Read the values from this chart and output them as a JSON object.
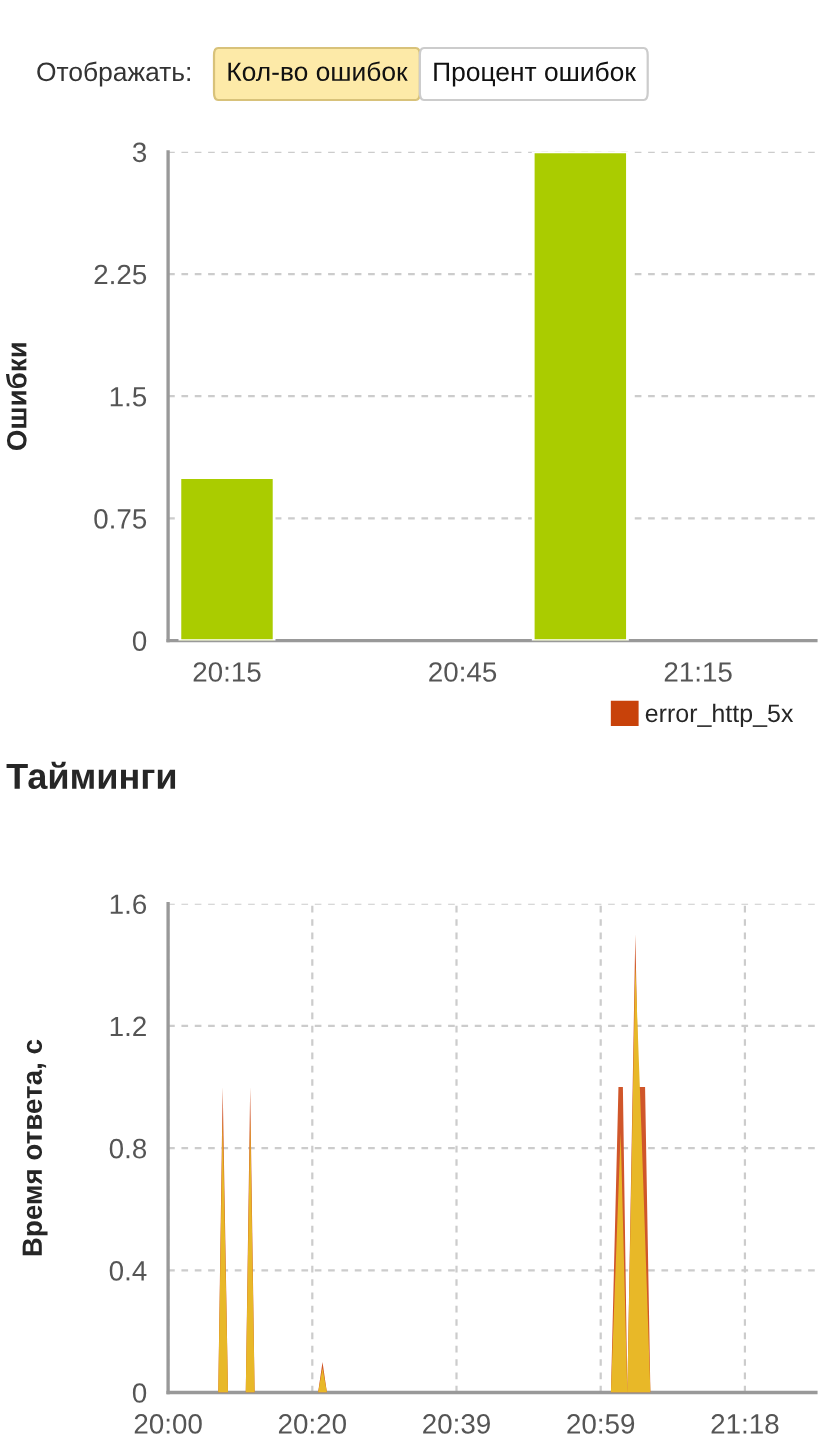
{
  "chart_data": [
    {
      "type": "bar",
      "ylabel": "Ошибки",
      "annotations": [
        "Отображать:",
        "Кол-во ошибок",
        "Процент ошибок"
      ],
      "x": [
        20.25,
        21.0
      ],
      "series": [
        {
          "color": "#aacc00",
          "values": [
            1,
            3
          ]
        },
        {
          "name": "error_http_5x",
          "color": "#c8420a",
          "values": [
            null,
            null
          ]
        }
      ],
      "xlim": [
        20.125,
        21.5
      ],
      "xticks": [
        {
          "value": 20.25,
          "label": "20:15"
        },
        {
          "value": 20.75,
          "label": "20:45"
        },
        {
          "value": 21.25,
          "label": "21:15"
        }
      ],
      "ylim": [
        0,
        3
      ],
      "yticks": [
        0,
        0.75,
        1.5,
        2.25,
        3
      ],
      "grid": "y",
      "legend": "bottom right"
    },
    {
      "type": "area",
      "title": "Тайминги",
      "ylabel": "Время ответа, с",
      "series": [
        {
          "color": "#d0562a",
          "x": [
            20.0,
            20.113,
            20.123,
            20.135,
            20.175,
            20.185,
            20.195,
            20.338,
            20.348,
            20.358,
            20.998,
            21.015,
            21.025,
            21.035,
            21.053,
            21.06,
            21.075,
            21.087,
            21.46
          ],
          "values": [
            0,
            0,
            1.0,
            0,
            0,
            1.0,
            0,
            0,
            0.1,
            0,
            0,
            1.0,
            1.0,
            0,
            1.5,
            1.0,
            1.0,
            0,
            0
          ]
        },
        {
          "color": "#e8b828",
          "x": [
            20.0,
            20.113,
            20.123,
            20.135,
            20.175,
            20.185,
            20.195,
            20.338,
            20.348,
            20.358,
            20.998,
            21.02,
            21.035,
            21.053,
            21.067,
            21.087,
            21.46
          ],
          "values": [
            0,
            0,
            0.9,
            0,
            0,
            0.9,
            0,
            0,
            0.08,
            0,
            0,
            0.85,
            0,
            1.4,
            0.85,
            0,
            0
          ]
        }
      ],
      "xlim": [
        20.0,
        21.46
      ],
      "xticks": [
        {
          "value": 20.0,
          "label": "20:00"
        },
        {
          "value": 20.325,
          "label": "20:20"
        },
        {
          "value": 20.65,
          "label": "20:39"
        },
        {
          "value": 20.975,
          "label": "20:59"
        },
        {
          "value": 21.3,
          "label": "21:18"
        }
      ],
      "ylim": [
        0,
        1.6
      ],
      "yticks": [
        0,
        0.4,
        0.8,
        1.2,
        1.6
      ],
      "grid": true
    }
  ]
}
